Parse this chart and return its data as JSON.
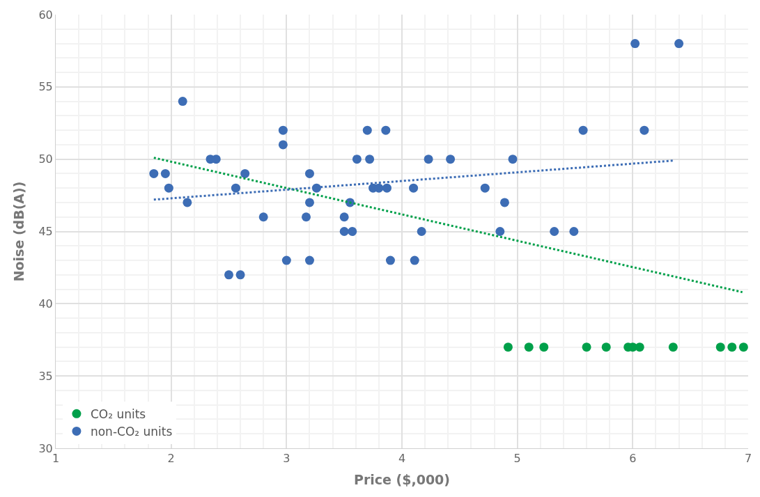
{
  "chart_data": {
    "type": "scatter",
    "xlabel": "Price ($,000)",
    "ylabel": "Noise (dB(A))",
    "xlim": [
      1,
      7
    ],
    "xticks": [
      1,
      2,
      3,
      4,
      5,
      6,
      7
    ],
    "ylim": [
      30,
      60
    ],
    "yticks": [
      30,
      35,
      40,
      45,
      50,
      55,
      60
    ],
    "grid": true,
    "legend": "bottom left",
    "marker": "circle",
    "series": [
      {
        "name": "CO₂ units",
        "color": "#00a04a",
        "x": [
          4.92,
          5.1,
          5.23,
          5.6,
          5.77,
          5.96,
          6.0,
          6.06,
          6.35,
          6.76,
          6.86,
          6.96
        ],
        "values": [
          37,
          37,
          37,
          37,
          37,
          37,
          37,
          37,
          37,
          37,
          37,
          37
        ]
      },
      {
        "name": "non-CO₂ units",
        "color": "#3d6db5",
        "x": [
          1.85,
          1.95,
          1.98,
          2.1,
          2.14,
          2.34,
          2.39,
          2.5,
          2.56,
          2.6,
          2.64,
          2.8,
          2.97,
          2.97,
          3.0,
          3.17,
          3.2,
          3.2,
          3.2,
          3.26,
          3.5,
          3.5,
          3.55,
          3.57,
          3.61,
          3.7,
          3.72,
          3.75,
          3.8,
          3.86,
          3.87,
          3.9,
          4.1,
          4.11,
          4.17,
          4.23,
          4.42,
          4.72,
          4.85,
          4.89,
          4.96,
          5.32,
          5.49,
          5.57,
          6.02,
          6.1,
          6.4
        ],
        "values": [
          49,
          49,
          48,
          54,
          47,
          50,
          50,
          42,
          48,
          42,
          49,
          46,
          52,
          51,
          43,
          46,
          49,
          47,
          43,
          48,
          46,
          45,
          47,
          45,
          50,
          52,
          50,
          48,
          48,
          52,
          48,
          43,
          48,
          43,
          45,
          50,
          50,
          48,
          45,
          47,
          50,
          45,
          45,
          52,
          58,
          52,
          58
        ]
      },
      {
        "type": "line",
        "line_style": "dotted",
        "marker": "none",
        "color": "#00a04a",
        "x": [
          1.85,
          6.95
        ],
        "values": [
          50.1,
          40.8
        ]
      },
      {
        "type": "line",
        "line_style": "dotted",
        "marker": "none",
        "color": "#3d6db5",
        "x": [
          1.85,
          6.35
        ],
        "values": [
          47.2,
          49.9
        ]
      }
    ]
  }
}
